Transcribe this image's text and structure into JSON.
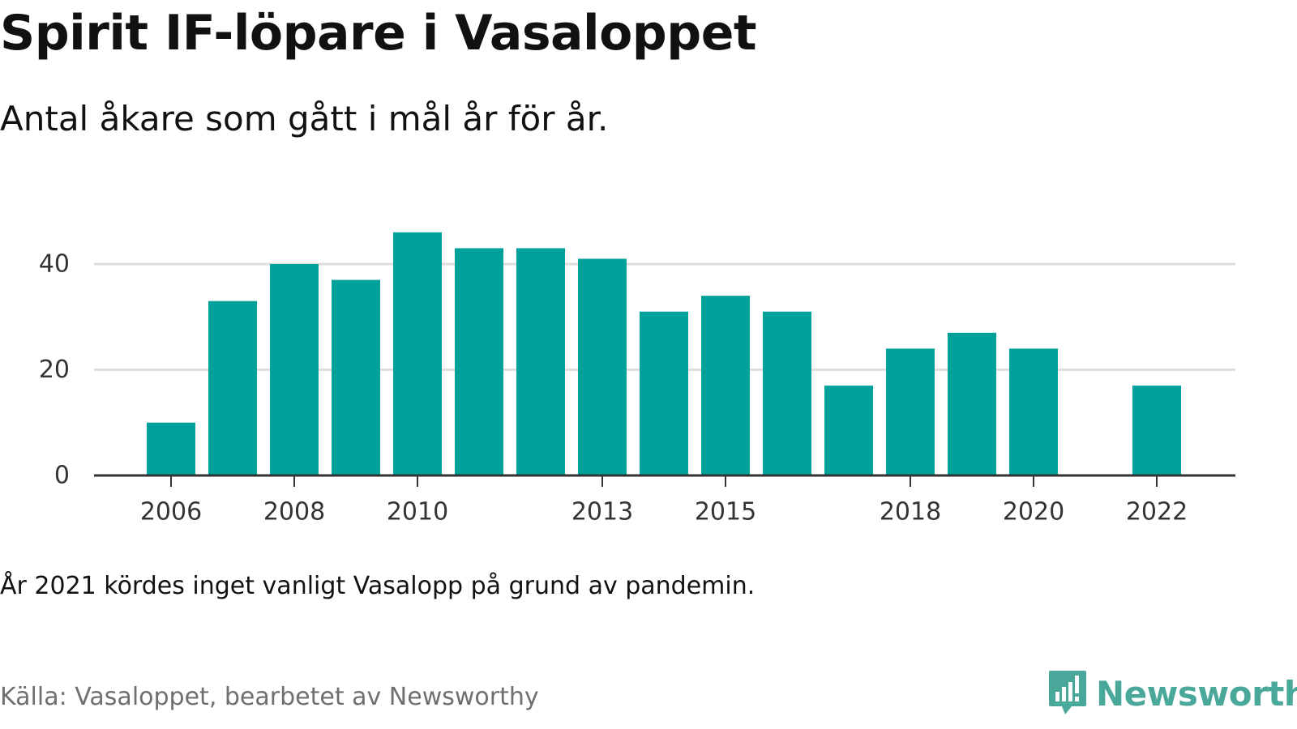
{
  "title": "Spirit IF-löpare i Vasaloppet",
  "subtitle": "Antal åkare som gått i mål år för år.",
  "note": "År 2021 kördes inget vanligt Vasalopp på grund av pandemin.",
  "source": "Källa: Vasaloppet, bearbetet av Newsworthy",
  "brand": {
    "name": "Newsworthy",
    "icon": "bar-chart-bubble-icon",
    "color": "#4aa89a"
  },
  "chart_data": {
    "type": "bar",
    "title": "Spirit IF-löpare i Vasaloppet",
    "subtitle": "Antal åkare som gått i mål år för år.",
    "xlabel": "",
    "ylabel": "",
    "categories": [
      2006,
      2007,
      2008,
      2009,
      2010,
      2011,
      2012,
      2013,
      2014,
      2015,
      2016,
      2017,
      2018,
      2019,
      2020,
      2021,
      2022
    ],
    "values": [
      10,
      33,
      40,
      37,
      46,
      43,
      43,
      41,
      31,
      34,
      31,
      17,
      24,
      27,
      24,
      0,
      17
    ],
    "x_ticks": [
      "2006",
      "2008",
      "2010",
      "2013",
      "2015",
      "2018",
      "2020",
      "2022"
    ],
    "y_ticks": [
      0,
      20,
      40
    ],
    "ylim": [
      0,
      50
    ],
    "grid": true,
    "legend": "none",
    "bar_color": "#00a19a",
    "grid_color": "#dddddd",
    "axis_color": "#333333"
  }
}
